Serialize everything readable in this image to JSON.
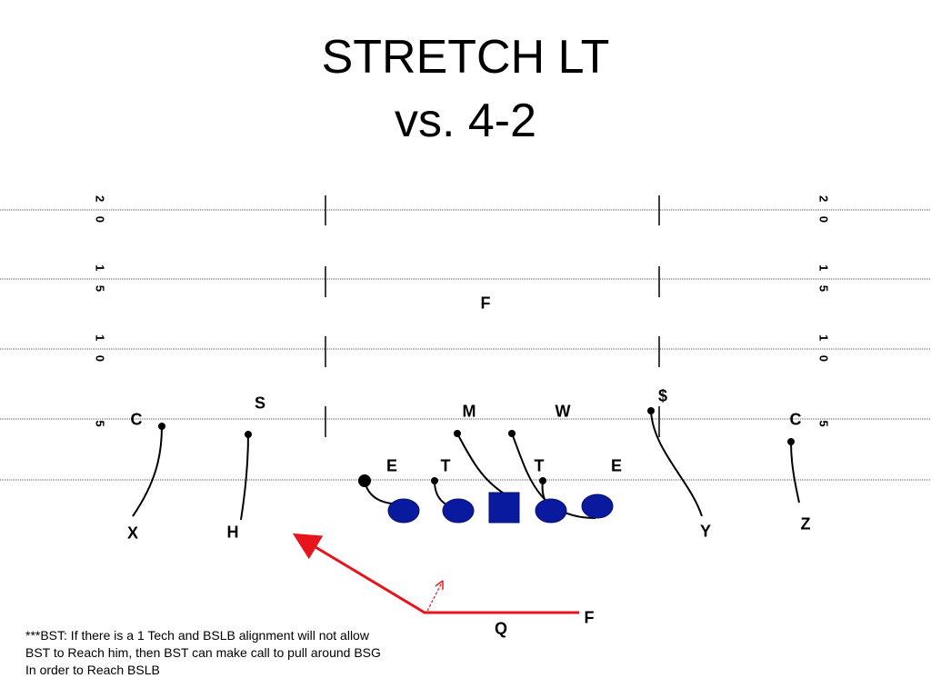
{
  "title": {
    "line1": "STRETCH LT",
    "line2": "vs. 4-2"
  },
  "field": {
    "yard_numbers": [
      "2 0",
      "1 5",
      "1 0",
      "5"
    ]
  },
  "defense": {
    "corner_left": "C",
    "strong_safety": "S",
    "mike": "M",
    "will": "W",
    "money": "$",
    "corner_right": "C",
    "free_safety": "F",
    "end_left": "E",
    "tackle_left": "T",
    "tackle_right": "T",
    "end_right": "E"
  },
  "offense": {
    "x": "X",
    "h": "H",
    "y": "Y",
    "z": "Z",
    "q": "Q",
    "f": "F"
  },
  "colors": {
    "offensive_line": "#0a1a9e",
    "ball_carrier_path": "#e8141b"
  },
  "note": {
    "line1": "***BST: If there is a 1 Tech and BSLB  alignment will not allow",
    "line2": "BST to Reach him, then BST can make call to pull around BSG",
    "line3": "In order to Reach BSLB"
  }
}
